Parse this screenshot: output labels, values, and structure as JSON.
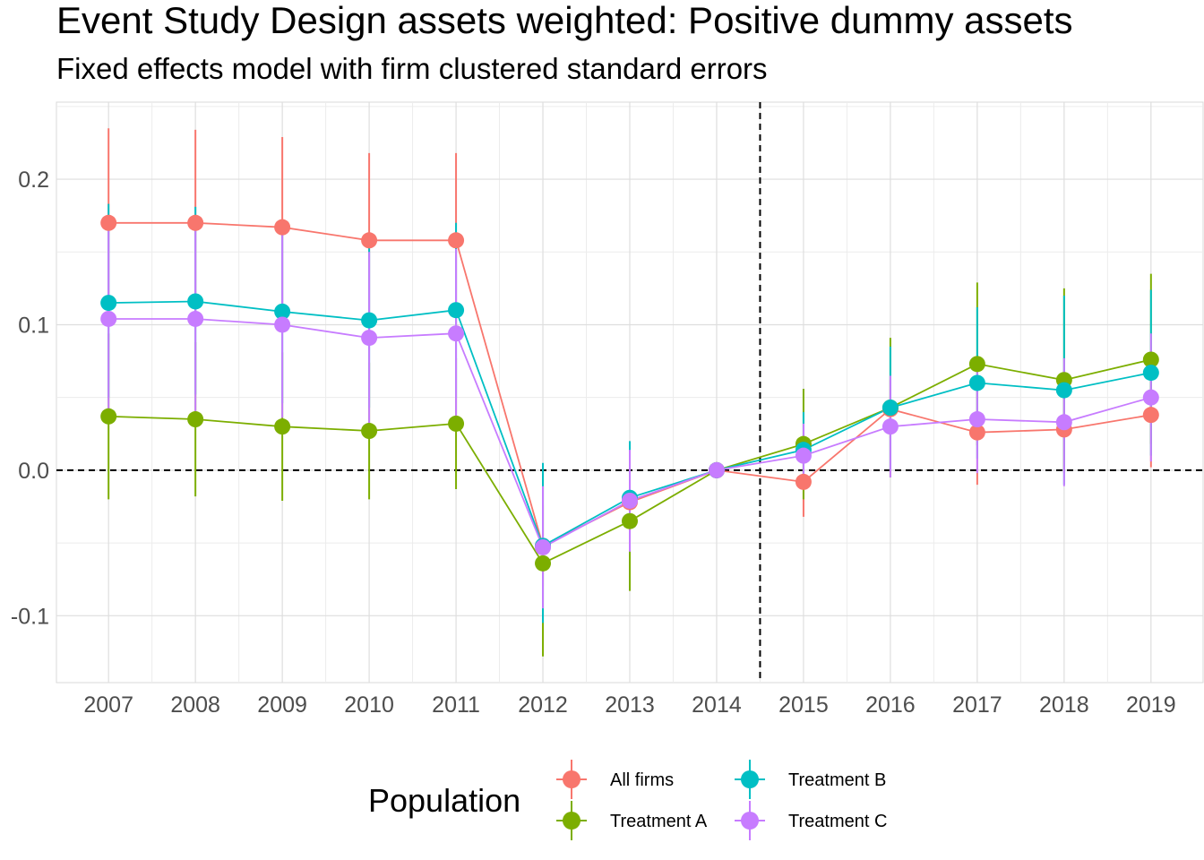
{
  "title": "Event Study Design assets weighted: Positive dummy assets",
  "subtitle": "Fixed effects model with firm clustered standard errors",
  "chart_data": {
    "type": "line",
    "x": [
      2007,
      2008,
      2009,
      2010,
      2011,
      2012,
      2013,
      2014,
      2015,
      2016,
      2017,
      2018,
      2019
    ],
    "x_tick_labels": [
      "2007",
      "2008",
      "2009",
      "2010",
      "2011",
      "2012",
      "2013",
      "2014",
      "2015",
      "2016",
      "2017",
      "2018",
      "2019"
    ],
    "y_ticks": [
      -0.1,
      0.0,
      0.1,
      0.2
    ],
    "y_tick_labels": [
      "-0.1",
      "0.0",
      "0.1",
      "0.2"
    ],
    "ylim": [
      -0.146,
      0.253
    ],
    "xlim": [
      2006.4,
      2019.6
    ],
    "grid": true,
    "reference_lines": {
      "horizontal_y": 0.0,
      "vertical_x": 2014.5,
      "style": "dashed"
    },
    "legend": {
      "title": "Population",
      "position": "bottom"
    },
    "series": [
      {
        "name": "All firms",
        "color": "#F8766D",
        "values": [
          0.17,
          0.17,
          0.167,
          0.158,
          0.158,
          -0.052,
          -0.022,
          0.0,
          -0.008,
          0.042,
          0.026,
          0.028,
          0.038
        ],
        "lower": [
          0.106,
          0.106,
          0.104,
          0.098,
          0.098,
          -0.08,
          -0.048,
          0.0,
          -0.032,
          0.022,
          -0.01,
          -0.002,
          0.002
        ],
        "upper": [
          0.235,
          0.234,
          0.229,
          0.218,
          0.218,
          -0.024,
          0.004,
          0.0,
          0.016,
          0.062,
          0.062,
          0.058,
          0.074
        ]
      },
      {
        "name": "Treatment A",
        "color": "#7CAE00",
        "values": [
          0.037,
          0.035,
          0.03,
          0.027,
          0.032,
          -0.064,
          -0.035,
          0.0,
          0.018,
          0.043,
          0.073,
          0.062,
          0.076
        ],
        "lower": [
          -0.02,
          -0.018,
          -0.021,
          -0.02,
          -0.013,
          -0.128,
          -0.083,
          0.0,
          -0.02,
          -0.005,
          0.017,
          0.0,
          0.018
        ],
        "upper": [
          0.094,
          0.088,
          0.081,
          0.074,
          0.077,
          0.0,
          0.013,
          0.0,
          0.056,
          0.091,
          0.129,
          0.125,
          0.135
        ]
      },
      {
        "name": "Treatment B",
        "color": "#00BFC4",
        "values": [
          0.115,
          0.116,
          0.109,
          0.103,
          0.11,
          -0.052,
          -0.019,
          0.0,
          0.014,
          0.043,
          0.06,
          0.055,
          0.067
        ],
        "lower": [
          0.05,
          0.052,
          0.046,
          0.043,
          0.05,
          -0.105,
          -0.055,
          0.0,
          -0.012,
          0.0,
          0.008,
          -0.01,
          0.01
        ],
        "upper": [
          0.183,
          0.181,
          0.172,
          0.163,
          0.17,
          0.005,
          0.02,
          0.0,
          0.04,
          0.085,
          0.112,
          0.12,
          0.124
        ]
      },
      {
        "name": "Treatment C",
        "color": "#C77CFF",
        "values": [
          0.104,
          0.104,
          0.1,
          0.091,
          0.094,
          -0.053,
          -0.021,
          0.0,
          0.01,
          0.03,
          0.035,
          0.033,
          0.05
        ],
        "lower": [
          0.04,
          0.04,
          0.036,
          0.032,
          0.036,
          -0.095,
          -0.056,
          0.0,
          -0.012,
          -0.005,
          -0.002,
          -0.011,
          0.006
        ],
        "upper": [
          0.168,
          0.168,
          0.164,
          0.15,
          0.152,
          -0.011,
          0.014,
          0.0,
          0.032,
          0.065,
          0.072,
          0.077,
          0.094
        ]
      }
    ]
  }
}
